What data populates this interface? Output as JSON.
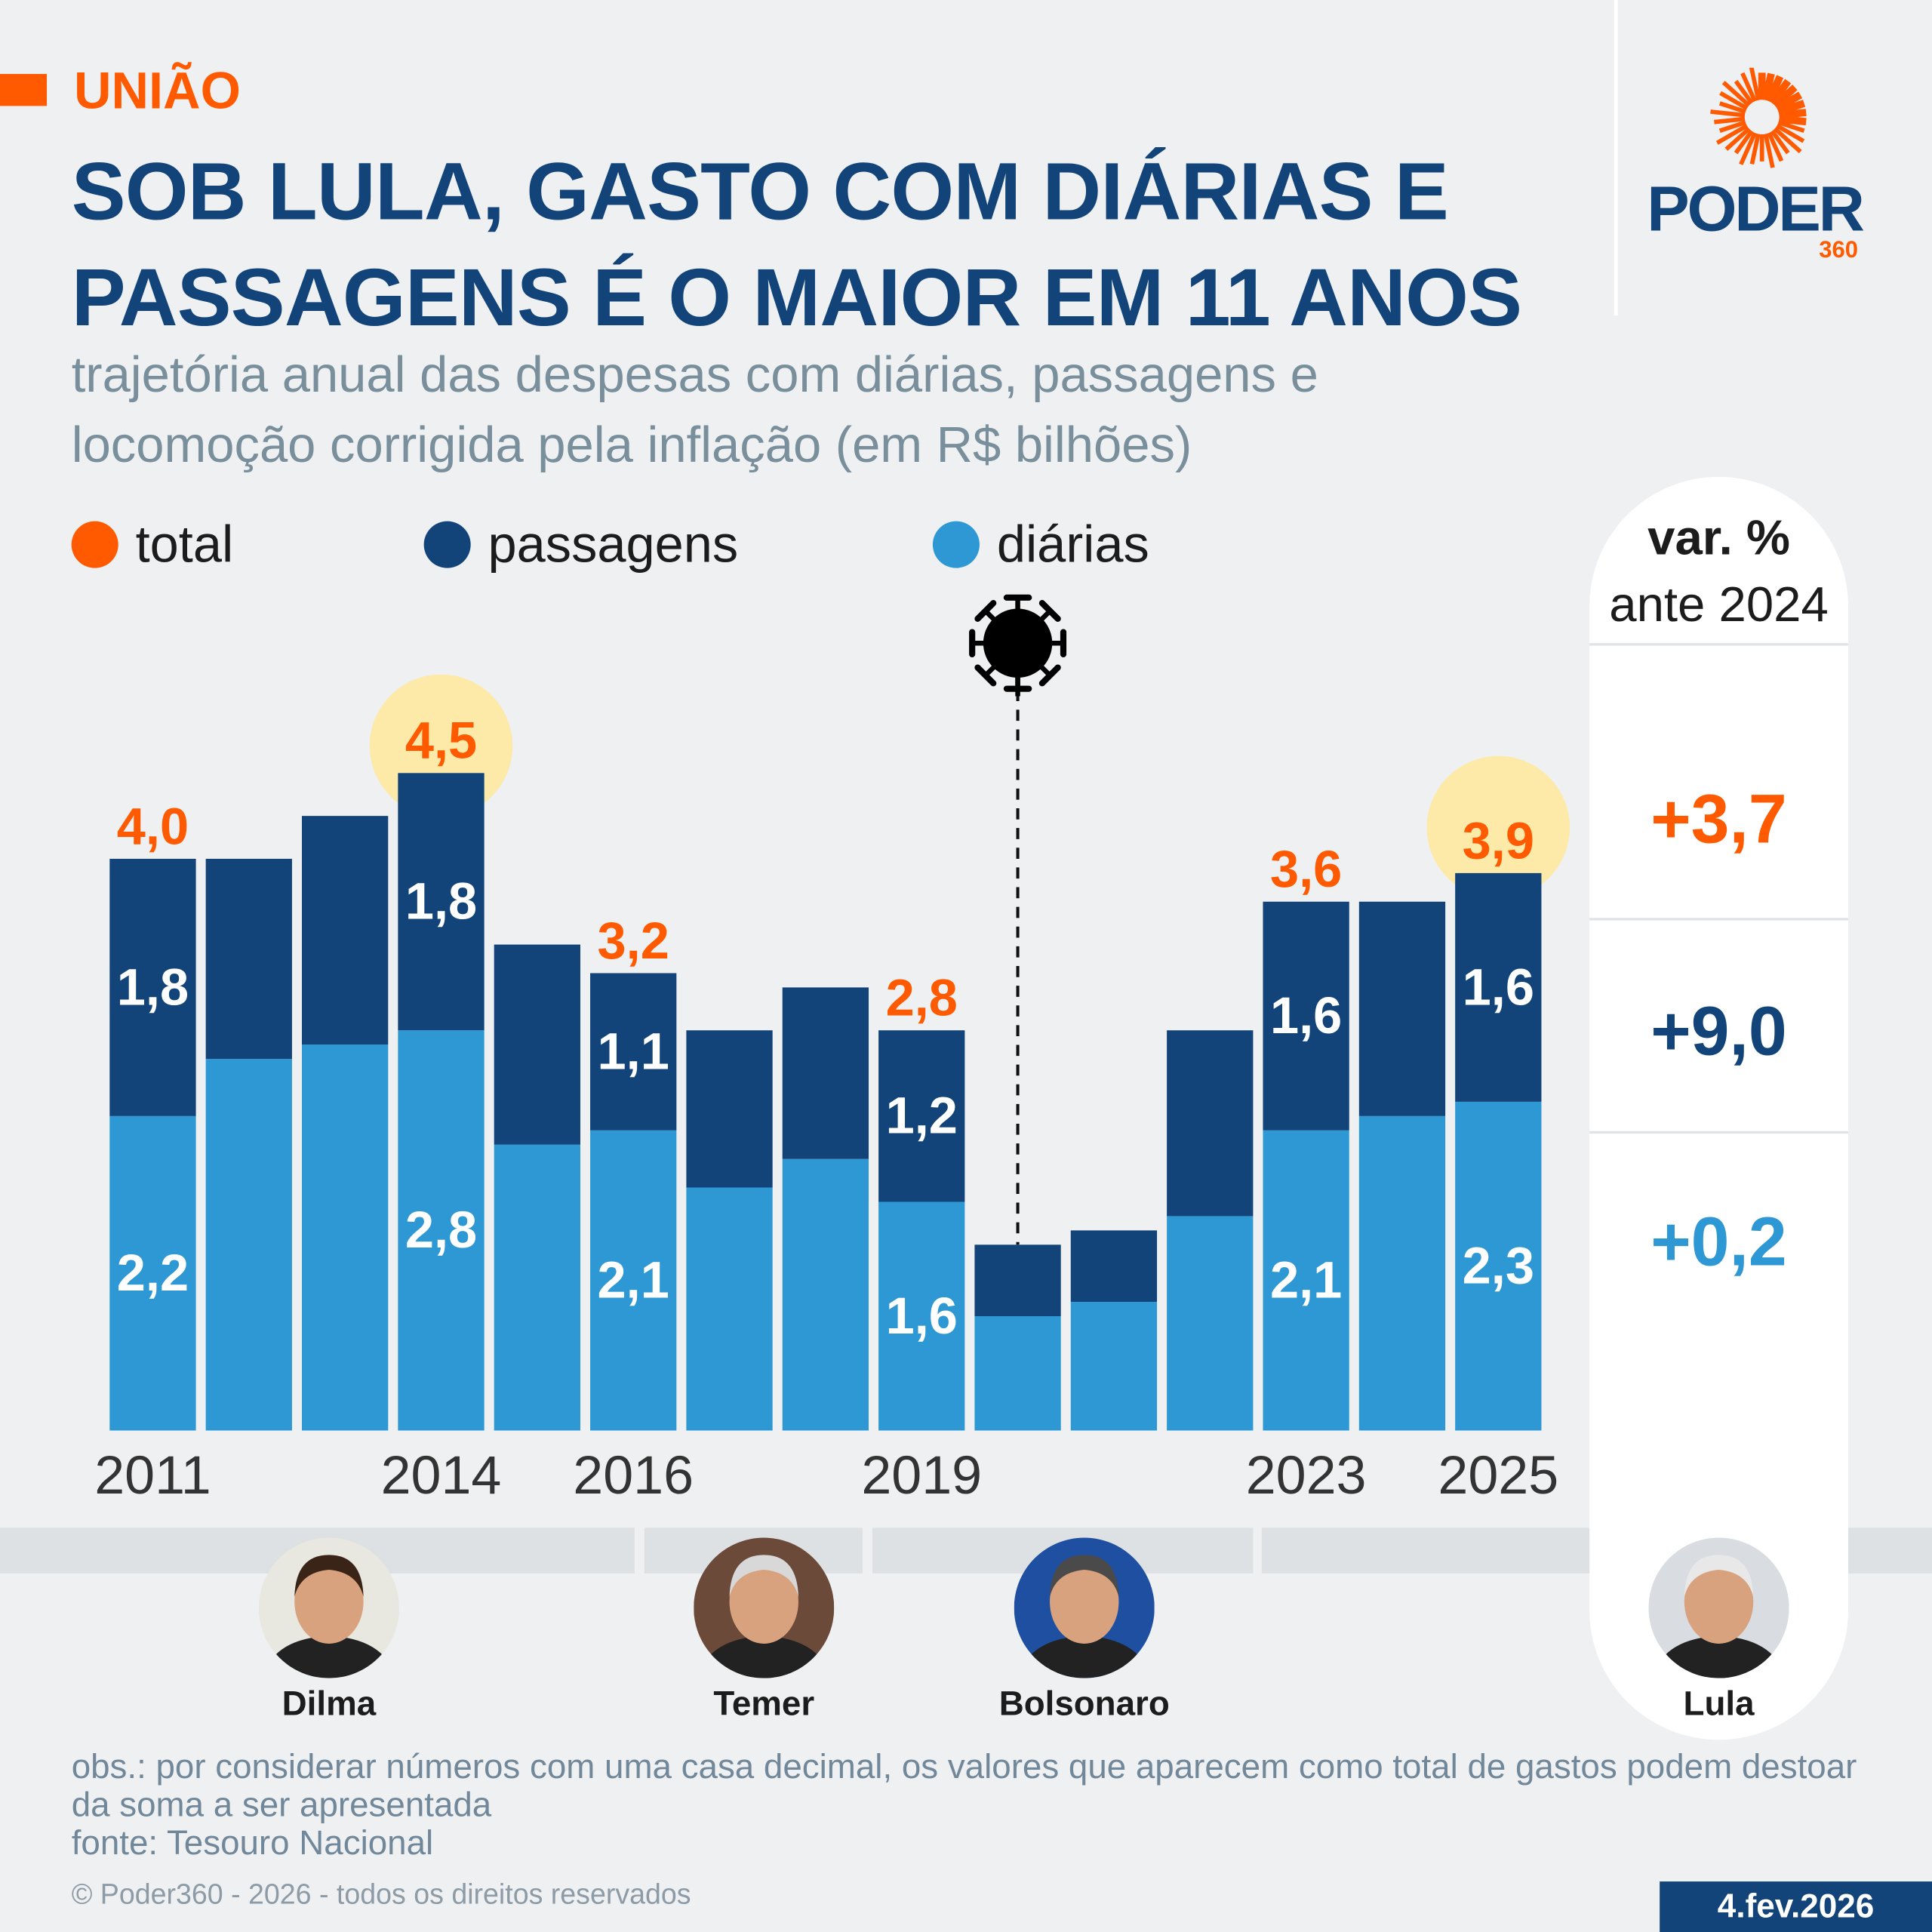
{
  "kicker": "UNIÃO",
  "title": "SOB LULA, GASTO COM DIÁRIAS E PASSAGENS É O MAIOR EM 11 ANOS",
  "subtitle": "trajetória anual das despesas com diárias, passagens e locomoção corrigida pela inflação (em R$ bilhões)",
  "logo": {
    "name": "PODER",
    "sub": "360"
  },
  "legend": [
    {
      "label": "total",
      "color": "#ff5a00"
    },
    {
      "label": "passagens",
      "color": "#12447a"
    },
    {
      "label": "diárias",
      "color": "#2e98d4"
    }
  ],
  "var_panel": {
    "header_line1": "var. %",
    "header_line2": "ante 2024",
    "values": [
      {
        "series": "total",
        "value": "+3,7",
        "color": "#ff5a00"
      },
      {
        "series": "passagens",
        "value": "+9,0",
        "color": "#12447a"
      },
      {
        "series": "diárias",
        "value": "+0,2",
        "color": "#2e98d4"
      }
    ]
  },
  "chart_data": {
    "type": "bar",
    "stacked": true,
    "categories": [
      "2011",
      "2012",
      "2013",
      "2014",
      "2015",
      "2016",
      "2017",
      "2018",
      "2019",
      "2020",
      "2021",
      "2022",
      "2023",
      "2024",
      "2025"
    ],
    "tick_labels": [
      "2011",
      "2014",
      "2016",
      "2019",
      "2023",
      "2025"
    ],
    "series": [
      {
        "name": "diárias",
        "color": "#2e98d4",
        "values": [
          2.2,
          2.6,
          2.7,
          2.8,
          2.0,
          2.1,
          1.7,
          1.9,
          1.6,
          0.8,
          0.9,
          1.5,
          2.1,
          2.2,
          2.3
        ],
        "labels": [
          "2,2",
          null,
          null,
          "2,8",
          null,
          "2,1",
          null,
          null,
          "1,6",
          null,
          null,
          null,
          "2,1",
          null,
          "2,3"
        ]
      },
      {
        "name": "passagens",
        "color": "#12447a",
        "values": [
          1.8,
          1.4,
          1.6,
          1.8,
          1.4,
          1.1,
          1.1,
          1.2,
          1.2,
          0.5,
          0.5,
          1.3,
          1.6,
          1.5,
          1.6
        ],
        "labels": [
          "1,8",
          null,
          null,
          "1,8",
          null,
          "1,1",
          null,
          null,
          "1,2",
          null,
          null,
          null,
          "1,6",
          null,
          "1,6"
        ]
      }
    ],
    "total_labels": [
      "4,0",
      null,
      null,
      "4,5",
      null,
      "3,2",
      null,
      null,
      "2,8",
      null,
      null,
      null,
      "3,6",
      null,
      "3,9"
    ],
    "highlighted": [
      "2014",
      "2025"
    ],
    "highlight_color": "#fde9a8",
    "annotation": {
      "at": "2020",
      "icon": "virus-icon"
    },
    "ylim": [
      0,
      5
    ]
  },
  "presidents": [
    {
      "name": "Dilma"
    },
    {
      "name": "Temer"
    },
    {
      "name": "Bolsonaro"
    },
    {
      "name": "Lula"
    }
  ],
  "footer": {
    "note": "obs.: por considerar números com uma casa decimal, os valores que aparecem como total de gastos podem destoar da soma a ser apresentada",
    "source": "fonte: Tesouro Nacional",
    "copyright": "© Poder360 - 2026 - todos os direitos reservados",
    "date": "4.fev.2026"
  }
}
